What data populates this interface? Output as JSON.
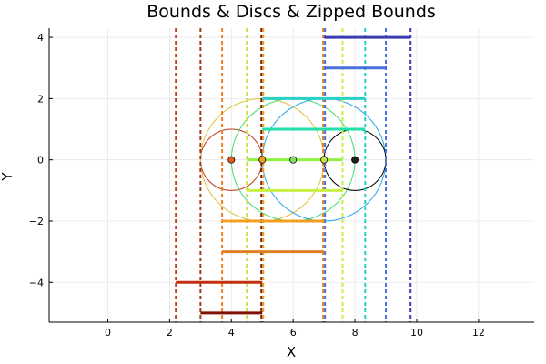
{
  "chart_data": {
    "type": "line",
    "title": "Bounds & Discs & Zipped Bounds",
    "xlabel": "X",
    "ylabel": "Y",
    "xlim": [
      -1.9,
      13.8
    ],
    "ylim": [
      -5.3,
      4.3
    ],
    "xticks": [
      0,
      2,
      4,
      6,
      8,
      10,
      12
    ],
    "yticks": [
      -4,
      -2,
      0,
      2,
      4
    ],
    "grid": true,
    "legend": "none",
    "circles": [
      {
        "cx": 4,
        "cy": 0,
        "r": 1,
        "color": "#c0361a"
      },
      {
        "cx": 5,
        "cy": 0,
        "r": 2,
        "color": "#e0c040"
      },
      {
        "cx": 6,
        "cy": 0,
        "r": 2,
        "color": "#40e070"
      },
      {
        "cx": 7,
        "cy": 0,
        "r": 2,
        "color": "#2aa7e8"
      },
      {
        "cx": 8,
        "cy": 0,
        "r": 1,
        "color": "#000000"
      }
    ],
    "points": [
      {
        "x": 4,
        "y": 0,
        "color": "#e05a1a"
      },
      {
        "x": 5,
        "y": 0,
        "color": "#f0a020"
      },
      {
        "x": 6,
        "y": 0,
        "color": "#7de060"
      },
      {
        "x": 7,
        "y": 0,
        "color": "#c8e040"
      },
      {
        "x": 8,
        "y": 0,
        "color": "#202020"
      }
    ],
    "horizontal_bounds": [
      {
        "y": 4,
        "x1": 7,
        "x2": 9.8,
        "color": "#3a3db0"
      },
      {
        "y": 3,
        "x1": 7,
        "x2": 9,
        "color": "#4a70e0"
      },
      {
        "y": 2,
        "x1": 5,
        "x2": 8.33,
        "color": "#28d0c8"
      },
      {
        "y": 1,
        "x1": 5,
        "x2": 8.33,
        "color": "#20e0a8"
      },
      {
        "y": 0,
        "x1": 4.5,
        "x2": 7.6,
        "color": "#90f040"
      },
      {
        "y": -1,
        "x1": 4.5,
        "x2": 7.6,
        "color": "#c8f040"
      },
      {
        "y": -2,
        "x1": 3.7,
        "x2": 7,
        "color": "#f0a020"
      },
      {
        "y": -3,
        "x1": 3.7,
        "x2": 7,
        "color": "#e08020"
      },
      {
        "y": -4,
        "x1": 2.2,
        "x2": 5,
        "color": "#c03010"
      },
      {
        "y": -5,
        "x1": 3,
        "x2": 5,
        "color": "#801000"
      }
    ],
    "vertical_bounds": [
      {
        "x": 2.2,
        "color": "#c04020"
      },
      {
        "x": 3,
        "color": "#a03818"
      },
      {
        "x": 3.7,
        "color": "#f08020"
      },
      {
        "x": 4.5,
        "color": "#c8e040"
      },
      {
        "x": 4.97,
        "color": "#7a2010"
      },
      {
        "x": 5.03,
        "color": "#f0a020"
      },
      {
        "x": 6.97,
        "color": "#e08020"
      },
      {
        "x": 7.03,
        "color": "#4a70e0"
      },
      {
        "x": 7.6,
        "color": "#c8f040"
      },
      {
        "x": 8.33,
        "color": "#20d0c0"
      },
      {
        "x": 9,
        "color": "#4a70e0"
      },
      {
        "x": 9.8,
        "color": "#3a3db0"
      }
    ]
  }
}
